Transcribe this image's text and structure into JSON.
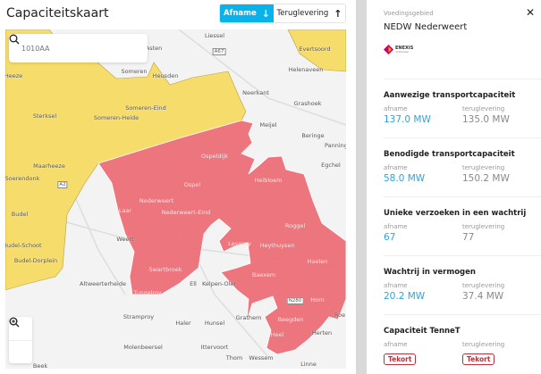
{
  "header": {
    "title": "Capaciteitskaart",
    "toggle": {
      "afname": "Afname",
      "teruglevering": "Teruglevering",
      "active": "afname"
    }
  },
  "colors": {
    "accent": "#0ab2ec",
    "red_area": "#ec6a74",
    "yellow_area": "#f6dc6a",
    "badge": "#b5323a"
  },
  "search": {
    "value": "1010AA",
    "icon": "search-icon"
  },
  "map_controls": {
    "zoom_in": "zoom-in-icon",
    "zoom_out": "zoom-out-icon"
  },
  "map": {
    "labels": [
      "Liessel",
      "Asten",
      "A67",
      "Evertsoord",
      "Helenaveen",
      "Someren",
      "Heeze",
      "Heusden",
      "Sterksel",
      "Someren-Eind",
      "Someren-Heide",
      "Neerkant",
      "Grashoek",
      "Meijel",
      "Beringe",
      "Panningen",
      "Egchel",
      "Maarheeze",
      "Soerendonk",
      "A2",
      "Ospeldijk",
      "Heibloem",
      "Ospel",
      "Budel",
      "Nederweert",
      "Nederweert-Eind",
      "Laar",
      "Roggel",
      "Weert",
      "Leveroy",
      "Heythuysen",
      "Budel-Schoot",
      "Budel-Dorplein",
      "Swartbroek",
      "Haelen",
      "Baexem",
      "Ell",
      "Kelpen-Oler",
      "Altweerterheide",
      "Tungelroy",
      "N280",
      "Horn",
      "Stramproy",
      "Roe",
      "Grathem",
      "Beegden",
      "Haler",
      "Hunsel",
      "Herten",
      "Heel",
      "Molenbeersel",
      "Ittervoort",
      "Thom",
      "Wessem",
      "Linne",
      "Beek"
    ]
  },
  "panel": {
    "label": "Voedingsgebied",
    "name": "NEDW Nederweert",
    "logo_text": "ENEXIS",
    "logo_sub": "netbeheer",
    "sections": [
      {
        "title": "Aanwezige transportcapaciteit",
        "afname_label": "afname",
        "teruglevering_label": "teruglevering",
        "afname": "137.0 MW",
        "teruglevering": "135.0 MW"
      },
      {
        "title": "Benodigde transportcapaciteit",
        "afname_label": "afname",
        "teruglevering_label": "teruglevering",
        "afname": "58.0 MW",
        "teruglevering": "150.2 MW"
      },
      {
        "title": "Unieke verzoeken in een wachtrij",
        "afname_label": "afname",
        "teruglevering_label": "teruglevering",
        "afname": "67",
        "teruglevering": "77"
      },
      {
        "title": "Wachtrij in vermogen",
        "afname_label": "afname",
        "teruglevering_label": "teruglevering",
        "afname": "20.2 MW",
        "teruglevering": "37.4 MW"
      },
      {
        "title": "Capaciteit TenneT",
        "afname_label": "afname",
        "teruglevering_label": "teruglevering",
        "afname": "Tekort",
        "teruglevering": "Tekort"
      }
    ]
  }
}
